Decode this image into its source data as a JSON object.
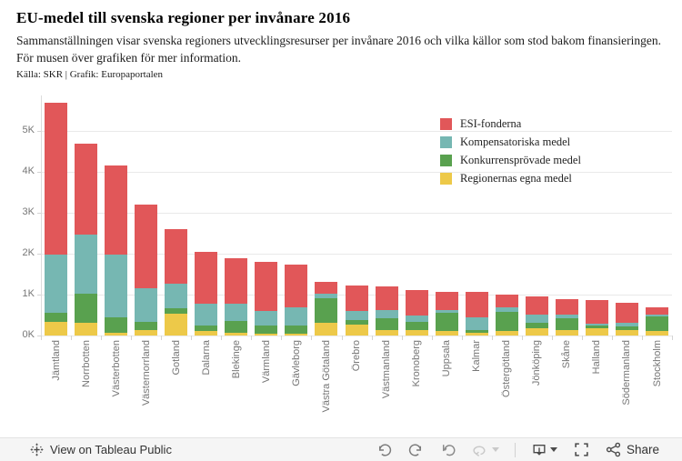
{
  "header": {
    "title": "EU-medel till svenska regioner per invånare 2016",
    "subtitle": "Sammanställningen visar svenska regioners utvecklingsresurser per invånare 2016 och vilka källor som stod bakom finansieringen. För musen över grafiken för mer information.",
    "source": "Källa: SKR | Grafik: Europaportalen"
  },
  "chart_data": {
    "type": "bar",
    "stacked": true,
    "title": "EU-medel till svenska regioner per invånare 2016",
    "xlabel": "",
    "ylabel": "",
    "ylim": [
      0,
      5870
    ],
    "grid": true,
    "legend_position": "top-right",
    "y_ticks": [
      "0K",
      "1K",
      "2K",
      "3K",
      "4K",
      "5K"
    ],
    "categories": [
      "Jämtland",
      "Norrbotten",
      "Västerbotten",
      "Västernorrland",
      "Gotland",
      "Dalarna",
      "Blekinge",
      "Värmland",
      "Gävleborg",
      "Västra Götaland",
      "Örebro",
      "Västmanland",
      "Kronoberg",
      "Uppsala",
      "Kalmar",
      "Östergötland",
      "Jönköping",
      "Skåne",
      "Halland",
      "Södermanland",
      "Stockholm"
    ],
    "series": [
      {
        "name": "ESI-fonderna",
        "color": "#e15759",
        "values": [
          3730,
          2230,
          2180,
          2040,
          1320,
          1280,
          1130,
          1200,
          1060,
          300,
          630,
          580,
          640,
          450,
          620,
          320,
          440,
          390,
          570,
          480,
          180
        ]
      },
      {
        "name": "Kompensatoriska medel",
        "color": "#76b7b2",
        "values": [
          1420,
          1460,
          1530,
          810,
          610,
          530,
          420,
          370,
          430,
          100,
          210,
          200,
          150,
          70,
          310,
          110,
          200,
          90,
          50,
          100,
          60
        ]
      },
      {
        "name": "Konkurrensprövade medel",
        "color": "#59a14f",
        "values": [
          220,
          700,
          390,
          210,
          130,
          130,
          280,
          190,
          210,
          620,
          120,
          280,
          190,
          440,
          70,
          460,
          130,
          280,
          60,
          90,
          340
        ]
      },
      {
        "name": "Regionernas egna medel",
        "color": "#edc949",
        "values": [
          330,
          310,
          60,
          130,
          530,
          110,
          70,
          50,
          40,
          300,
          260,
          130,
          140,
          110,
          60,
          110,
          180,
          140,
          180,
          130,
          120
        ]
      }
    ],
    "totals": [
      5700,
      4700,
      4160,
      3190,
      2590,
      2050,
      1900,
      1810,
      1740,
      1320,
      1220,
      1190,
      1120,
      1070,
      1060,
      1000,
      950,
      900,
      860,
      800,
      700
    ]
  },
  "colors": {
    "grid": "#e9e9e9",
    "axis_text": "#767676",
    "toolbar_bg": "#f5f5f5",
    "icon_gray": "#7b7b7b",
    "icon_light": "#c9c9c9",
    "icon_dark": "#4a4a4a"
  },
  "toolbar": {
    "view_label": "View on Tableau Public",
    "share_label": "Share",
    "icons": [
      "tableau-logo-icon",
      "undo-icon",
      "redo-icon",
      "replay-icon",
      "refresh-icon",
      "refresh-caret-icon",
      "download-icon",
      "download-caret-icon",
      "fullscreen-icon",
      "share-icon"
    ]
  }
}
